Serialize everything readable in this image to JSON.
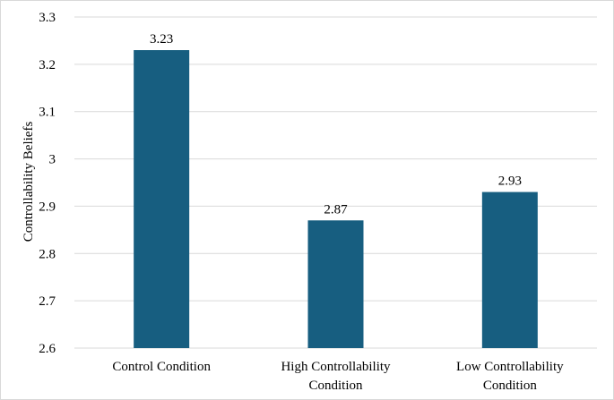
{
  "chart_data": {
    "type": "bar",
    "title": "",
    "xlabel": "",
    "ylabel": "Controllability Beliefs",
    "categories": [
      [
        "Control Condition"
      ],
      [
        "High Controllability",
        "Condition"
      ],
      [
        "Low Controllability",
        "Condition"
      ]
    ],
    "values": [
      3.23,
      2.87,
      2.93
    ],
    "value_labels": [
      "3.23",
      "2.87",
      "2.93"
    ],
    "ylim": [
      2.6,
      3.3
    ],
    "yticks": [
      2.6,
      2.7,
      2.8,
      2.9,
      3.0,
      3.1,
      3.2,
      3.3
    ],
    "ytick_labels": [
      "2.6",
      "2.7",
      "2.8",
      "2.9",
      "3",
      "3.1",
      "3.2",
      "3.3"
    ],
    "grid": true,
    "legend": "none",
    "bar_color": "#175e80",
    "grid_color": "#d9d9d9"
  }
}
